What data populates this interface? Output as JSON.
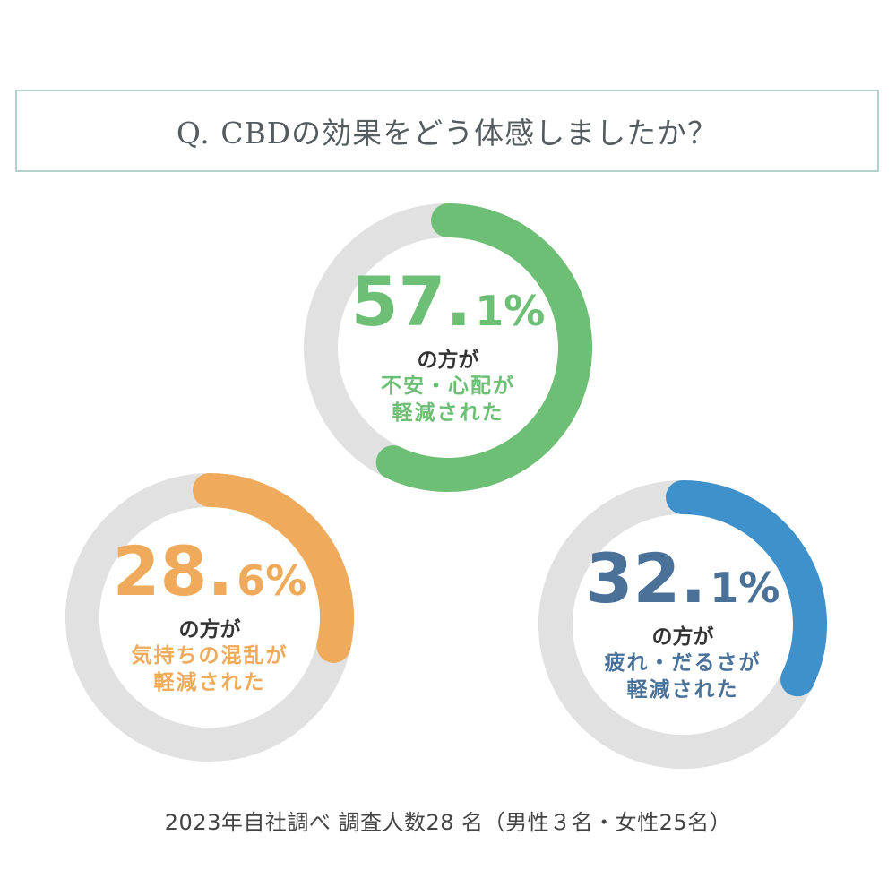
{
  "question": "Q. CBDの効果をどう体感しましたか？",
  "chart_data": {
    "type": "pie",
    "style": "donut",
    "items": [
      {
        "id": "anxiety",
        "value": 57.1,
        "pct_int": "57.",
        "pct_dec": "1",
        "pct_sign": "%",
        "line1": "の方が",
        "line2": "不安・心配が",
        "line3": "軽減された",
        "color": "#6cbf74",
        "text_color": "#6cbf74"
      },
      {
        "id": "mood",
        "value": 28.6,
        "pct_int": "28.",
        "pct_dec": "6",
        "pct_sign": "%",
        "line1": "の方が",
        "line2": "気持ちの混乱が",
        "line3": "軽減された",
        "color": "#efab5b",
        "text_color": "#efab5b"
      },
      {
        "id": "fatigue",
        "value": 32.1,
        "pct_int": "32.",
        "pct_dec": "1",
        "pct_sign": "%",
        "line1": "の方が",
        "line2": "疲れ・だるさが",
        "line3": "軽減された",
        "color": "#3e91ca",
        "text_color": "#4a7198"
      }
    ],
    "track_color": "#e1e1e1"
  },
  "footnote": "2023年自社調べ 調査人数28 名（男性３名・女性25名）"
}
